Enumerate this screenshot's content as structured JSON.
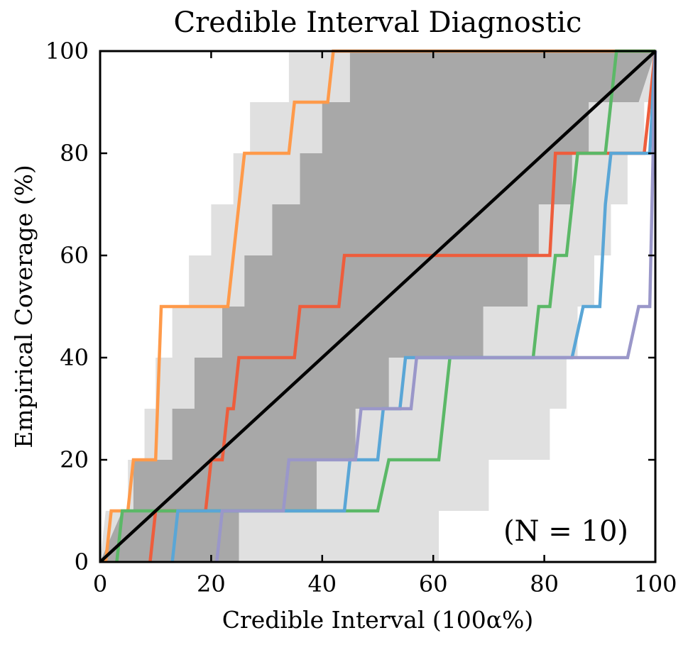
{
  "chart_data": {
    "type": "line",
    "title": "Credible Interval Diagnostic",
    "xlabel": "Credible Interval (100α%)",
    "ylabel": "Empirical Coverage (%)",
    "annotation": "(N = 10)",
    "xlim": [
      0,
      100
    ],
    "ylim": [
      0,
      100
    ],
    "xticks": [
      0,
      20,
      40,
      60,
      80,
      100
    ],
    "yticks": [
      0,
      20,
      40,
      60,
      80,
      100
    ],
    "grid": false,
    "legend": "none",
    "reference_line": {
      "x": [
        0,
        100
      ],
      "y": [
        0,
        100
      ],
      "color": "#000000"
    },
    "bands": [
      {
        "color": "#e0e0e0",
        "upper": [
          [
            0,
            0
          ],
          [
            1,
            10
          ],
          [
            5,
            10
          ],
          [
            5,
            20
          ],
          [
            8,
            20
          ],
          [
            8,
            30
          ],
          [
            10,
            30
          ],
          [
            10,
            40
          ],
          [
            13,
            40
          ],
          [
            13,
            50
          ],
          [
            16,
            50
          ],
          [
            16,
            60
          ],
          [
            20,
            60
          ],
          [
            20,
            70
          ],
          [
            24,
            70
          ],
          [
            24,
            80
          ],
          [
            27,
            80
          ],
          [
            27,
            90
          ],
          [
            34,
            90
          ],
          [
            34,
            100
          ],
          [
            100,
            100
          ]
        ],
        "lower": [
          [
            0,
            0
          ],
          [
            25,
            0
          ],
          [
            25,
            0
          ],
          [
            61,
            0
          ],
          [
            61,
            10
          ],
          [
            70,
            10
          ],
          [
            70,
            20
          ],
          [
            81,
            20
          ],
          [
            81,
            30
          ],
          [
            84,
            30
          ],
          [
            84,
            40
          ],
          [
            86,
            40
          ],
          [
            86,
            50
          ],
          [
            89,
            50
          ],
          [
            89,
            60
          ],
          [
            92,
            60
          ],
          [
            92,
            70
          ],
          [
            95,
            70
          ],
          [
            95,
            80
          ],
          [
            98,
            80
          ],
          [
            98,
            90
          ],
          [
            100,
            90
          ],
          [
            100,
            100
          ]
        ]
      },
      {
        "color": "#a8a8a8",
        "upper": [
          [
            0,
            0
          ],
          [
            4,
            10
          ],
          [
            6,
            10
          ],
          [
            6,
            20
          ],
          [
            13,
            20
          ],
          [
            13,
            30
          ],
          [
            17,
            30
          ],
          [
            17,
            40
          ],
          [
            22,
            40
          ],
          [
            22,
            50
          ],
          [
            26,
            50
          ],
          [
            26,
            60
          ],
          [
            31,
            60
          ],
          [
            31,
            70
          ],
          [
            36,
            70
          ],
          [
            36,
            80
          ],
          [
            40,
            80
          ],
          [
            40,
            90
          ],
          [
            45,
            90
          ],
          [
            45,
            100
          ],
          [
            100,
            100
          ]
        ],
        "lower": [
          [
            0,
            0
          ],
          [
            25,
            0
          ],
          [
            25,
            10
          ],
          [
            39,
            10
          ],
          [
            39,
            20
          ],
          [
            46,
            20
          ],
          [
            46,
            30
          ],
          [
            52,
            30
          ],
          [
            52,
            40
          ],
          [
            63,
            40
          ],
          [
            63,
            40
          ],
          [
            69,
            40
          ],
          [
            69,
            50
          ],
          [
            77,
            50
          ],
          [
            77,
            60
          ],
          [
            79,
            60
          ],
          [
            79,
            70
          ],
          [
            85,
            70
          ],
          [
            85,
            80
          ],
          [
            88,
            80
          ],
          [
            88,
            90
          ],
          [
            97,
            90
          ],
          [
            100,
            100
          ]
        ]
      }
    ],
    "series": [
      {
        "color": "#ff9a4a",
        "points": [
          [
            1,
            0
          ],
          [
            2,
            10
          ],
          [
            5,
            10
          ],
          [
            6,
            20
          ],
          [
            10,
            20
          ],
          [
            11,
            50
          ],
          [
            23,
            50
          ],
          [
            25,
            70
          ],
          [
            26,
            80
          ],
          [
            34,
            80
          ],
          [
            35,
            90
          ],
          [
            41,
            90
          ],
          [
            42,
            100
          ],
          [
            100,
            100
          ]
        ]
      },
      {
        "color": "#ee5d3c",
        "points": [
          [
            9,
            0
          ],
          [
            10,
            10
          ],
          [
            19,
            10
          ],
          [
            20,
            20
          ],
          [
            22,
            20
          ],
          [
            23,
            30
          ],
          [
            24,
            30
          ],
          [
            25,
            40
          ],
          [
            35,
            40
          ],
          [
            36,
            50
          ],
          [
            43,
            50
          ],
          [
            44,
            60
          ],
          [
            81,
            60
          ],
          [
            82,
            80
          ],
          [
            98,
            80
          ],
          [
            100,
            100
          ]
        ]
      },
      {
        "color": "#5bb867",
        "points": [
          [
            3,
            0
          ],
          [
            4,
            10
          ],
          [
            50,
            10
          ],
          [
            52,
            20
          ],
          [
            61,
            20
          ],
          [
            63,
            40
          ],
          [
            78,
            40
          ],
          [
            79,
            50
          ],
          [
            81,
            50
          ],
          [
            82,
            60
          ],
          [
            84,
            60
          ],
          [
            86,
            80
          ],
          [
            91,
            80
          ],
          [
            93,
            100
          ],
          [
            100,
            100
          ]
        ]
      },
      {
        "color": "#5aa6d6",
        "points": [
          [
            13,
            0
          ],
          [
            14,
            10
          ],
          [
            44,
            10
          ],
          [
            45,
            20
          ],
          [
            50,
            20
          ],
          [
            51,
            30
          ],
          [
            54,
            30
          ],
          [
            55,
            40
          ],
          [
            85,
            40
          ],
          [
            87,
            50
          ],
          [
            90,
            50
          ],
          [
            91,
            70
          ],
          [
            92,
            80
          ],
          [
            99,
            80
          ],
          [
            100,
            100
          ]
        ]
      },
      {
        "color": "#9a97c9",
        "points": [
          [
            21,
            0
          ],
          [
            22,
            10
          ],
          [
            33,
            10
          ],
          [
            34,
            20
          ],
          [
            46,
            20
          ],
          [
            47,
            30
          ],
          [
            56,
            30
          ],
          [
            57,
            40
          ],
          [
            95,
            40
          ],
          [
            97,
            50
          ],
          [
            99,
            50
          ],
          [
            100,
            100
          ]
        ]
      }
    ]
  }
}
